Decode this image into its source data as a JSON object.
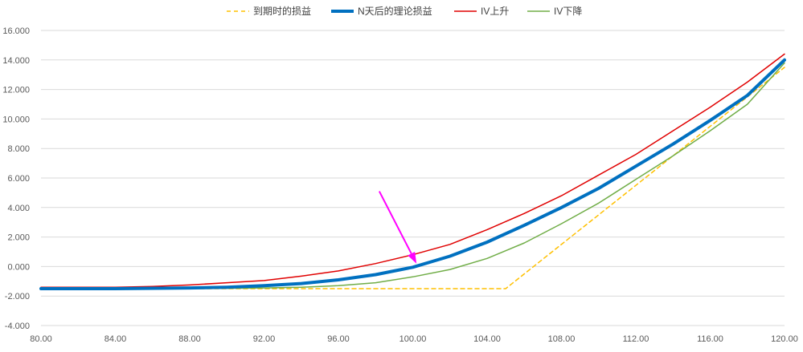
{
  "chart_data": {
    "type": "line",
    "x_ticks": [
      "80.00",
      "84.00",
      "88.00",
      "92.00",
      "96.00",
      "100.00",
      "104.00",
      "108.00",
      "112.00",
      "116.00",
      "120.00"
    ],
    "y_ticks": [
      "16.000",
      "14.000",
      "12.000",
      "10.000",
      "8.000",
      "6.000",
      "4.000",
      "2.000",
      "0.000",
      "-2.000",
      "-4.000"
    ],
    "xlim": [
      80,
      120
    ],
    "ylim": [
      -4,
      16
    ],
    "grid": "horizontal",
    "legend_position": "top",
    "series": [
      {
        "name": "到期时的损益",
        "color": "#FFC000",
        "dash": true,
        "width": 1.5,
        "points": [
          [
            80,
            -1.5
          ],
          [
            105,
            -1.5
          ],
          [
            120,
            13.5
          ]
        ]
      },
      {
        "name": "N天后的理论损益",
        "color": "#0070C0",
        "dash": false,
        "width": 4,
        "points": [
          [
            80,
            -1.5
          ],
          [
            84,
            -1.5
          ],
          [
            88,
            -1.45
          ],
          [
            90,
            -1.4
          ],
          [
            92,
            -1.3
          ],
          [
            94,
            -1.15
          ],
          [
            96,
            -0.9
          ],
          [
            98,
            -0.55
          ],
          [
            100,
            -0.05
          ],
          [
            102,
            0.7
          ],
          [
            104,
            1.65
          ],
          [
            106,
            2.8
          ],
          [
            108,
            4.0
          ],
          [
            110,
            5.3
          ],
          [
            112,
            6.8
          ],
          [
            114,
            8.3
          ],
          [
            116,
            9.9
          ],
          [
            118,
            11.6
          ],
          [
            120,
            14.0
          ]
        ]
      },
      {
        "name": "IV上升",
        "color": "#E00000",
        "dash": false,
        "width": 1.5,
        "points": [
          [
            80,
            -1.4
          ],
          [
            84,
            -1.4
          ],
          [
            86,
            -1.35
          ],
          [
            88,
            -1.25
          ],
          [
            90,
            -1.1
          ],
          [
            92,
            -0.95
          ],
          [
            94,
            -0.65
          ],
          [
            96,
            -0.3
          ],
          [
            98,
            0.2
          ],
          [
            100,
            0.8
          ],
          [
            102,
            1.5
          ],
          [
            104,
            2.5
          ],
          [
            106,
            3.6
          ],
          [
            108,
            4.8
          ],
          [
            110,
            6.2
          ],
          [
            112,
            7.6
          ],
          [
            114,
            9.2
          ],
          [
            116,
            10.8
          ],
          [
            118,
            12.5
          ],
          [
            120,
            14.4
          ]
        ]
      },
      {
        "name": "IV下降",
        "color": "#70AD47",
        "dash": false,
        "width": 1.5,
        "points": [
          [
            80,
            -1.5
          ],
          [
            88,
            -1.5
          ],
          [
            92,
            -1.45
          ],
          [
            94,
            -1.4
          ],
          [
            96,
            -1.3
          ],
          [
            98,
            -1.1
          ],
          [
            100,
            -0.7
          ],
          [
            102,
            -0.2
          ],
          [
            104,
            0.55
          ],
          [
            106,
            1.6
          ],
          [
            108,
            2.9
          ],
          [
            110,
            4.3
          ],
          [
            112,
            5.9
          ],
          [
            114,
            7.5
          ],
          [
            116,
            9.2
          ],
          [
            118,
            11.0
          ],
          [
            120,
            13.8
          ]
        ]
      }
    ],
    "annotations": [
      {
        "type": "arrow",
        "color": "#FF00FF",
        "from": [
          98.2,
          5.1
        ],
        "to": [
          100.2,
          0.2
        ]
      }
    ]
  }
}
